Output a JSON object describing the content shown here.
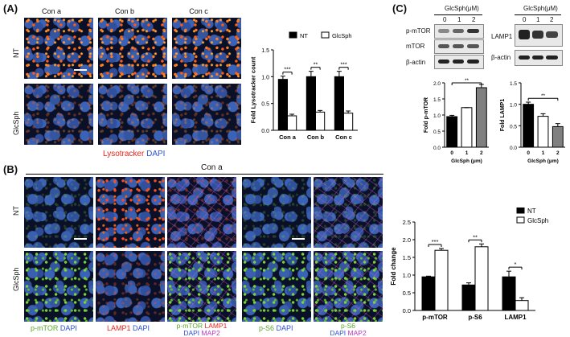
{
  "panels": {
    "A": {
      "label": "(A)",
      "columns": [
        "Con a",
        "Con b",
        "Con c"
      ],
      "rows": [
        "NT",
        "GlcSph"
      ],
      "caption": {
        "part1": "Lysotracker",
        "part2": "DAPI"
      }
    },
    "B": {
      "label": "(B)",
      "group_title": "Con a",
      "rows": [
        "NT",
        "GlcSph"
      ],
      "captions": [
        {
          "a": "p-mTOR",
          "b": "DAPI"
        },
        {
          "a": "LAMP1",
          "b": "DAPI"
        },
        {
          "a": "p-mTOR",
          "b": "LAMP1",
          "c": "DAPI",
          "d": "MAP2"
        },
        {
          "a": "p-S6",
          "b": "DAPI"
        },
        {
          "a": "p-S6",
          "b": "DAPI",
          "c": "MAP2"
        }
      ]
    },
    "C": {
      "label": "(C)",
      "blot1_title": "GlcSph(μM)",
      "blot1_lanes": [
        "0",
        "1",
        "2"
      ],
      "blot1_rows": [
        "p-mTOR",
        "mTOR",
        "β-actin"
      ],
      "blot2_title": "GlcSph(μM)",
      "blot2_lanes": [
        "0",
        "1",
        "2"
      ],
      "blot2_rows": [
        "LAMP1",
        "β-actin"
      ]
    }
  },
  "colors": {
    "red": "#e8251d",
    "blue": "#2b4fd6",
    "green": "#5aa62a",
    "magenta": "#c133c4"
  },
  "chart_data": [
    {
      "type": "bar",
      "id": "A-lysotracker",
      "ylabel": "Fold Lysotracker count",
      "categories": [
        "Con a",
        "Con b",
        "Con c"
      ],
      "yticks": [
        "0.0",
        "0.5",
        "1.0",
        "1.5"
      ],
      "ylim": [
        0,
        1.5
      ],
      "legend_position": "top",
      "series": [
        {
          "name": "NT",
          "values": [
            0.95,
            1.0,
            1.0
          ],
          "errors": [
            0.06,
            0.1,
            0.1
          ],
          "color": "#000000"
        },
        {
          "name": "GlcSph",
          "values": [
            0.27,
            0.34,
            0.32
          ],
          "errors": [
            0.03,
            0.03,
            0.04
          ],
          "color": "#ffffff"
        }
      ],
      "significance": [
        "***",
        "**",
        "***"
      ]
    },
    {
      "type": "bar",
      "id": "C-pmtor",
      "ylabel": "Fold p-mTOR",
      "xlabel": "GlcSph (μm)",
      "categories": [
        "0",
        "1",
        "2"
      ],
      "yticks": [
        "0.0",
        "0.5",
        "1.0",
        "1.5",
        "2.0"
      ],
      "ylim": [
        0,
        2.0
      ],
      "values": [
        0.95,
        1.23,
        1.85
      ],
      "errors": [
        0.04,
        0.0,
        0.1
      ],
      "colors": [
        "#000000",
        "#ffffff",
        "#808080"
      ],
      "significance": [
        "**"
      ]
    },
    {
      "type": "bar",
      "id": "C-lamp1",
      "ylabel": "Fold LAMP1",
      "xlabel": "GlcSph (μm)",
      "categories": [
        "0",
        "1",
        "2"
      ],
      "yticks": [
        "0.0",
        "0.5",
        "1.0",
        "1.5"
      ],
      "ylim": [
        0,
        1.5
      ],
      "values": [
        1.0,
        0.72,
        0.48
      ],
      "errors": [
        0.05,
        0.06,
        0.07
      ],
      "colors": [
        "#000000",
        "#ffffff",
        "#808080"
      ],
      "significance": [
        "**"
      ]
    },
    {
      "type": "bar",
      "id": "B-fold-change",
      "ylabel": "Fold change",
      "categories": [
        "p-mTOR",
        "p-S6",
        "LAMP1"
      ],
      "yticks": [
        "0.0",
        "0.5",
        "1.0",
        "1.5",
        "2.0",
        "2.5"
      ],
      "ylim": [
        0,
        2.5
      ],
      "legend_position": "top-right",
      "series": [
        {
          "name": "NT",
          "values": [
            0.95,
            0.72,
            0.95
          ],
          "errors": [
            0.02,
            0.06,
            0.16
          ],
          "color": "#000000"
        },
        {
          "name": "GlcSph",
          "values": [
            1.7,
            1.8,
            0.28
          ],
          "errors": [
            0.05,
            0.08,
            0.08
          ],
          "color": "#ffffff"
        }
      ],
      "significance": [
        "***",
        "**",
        "*"
      ]
    }
  ]
}
